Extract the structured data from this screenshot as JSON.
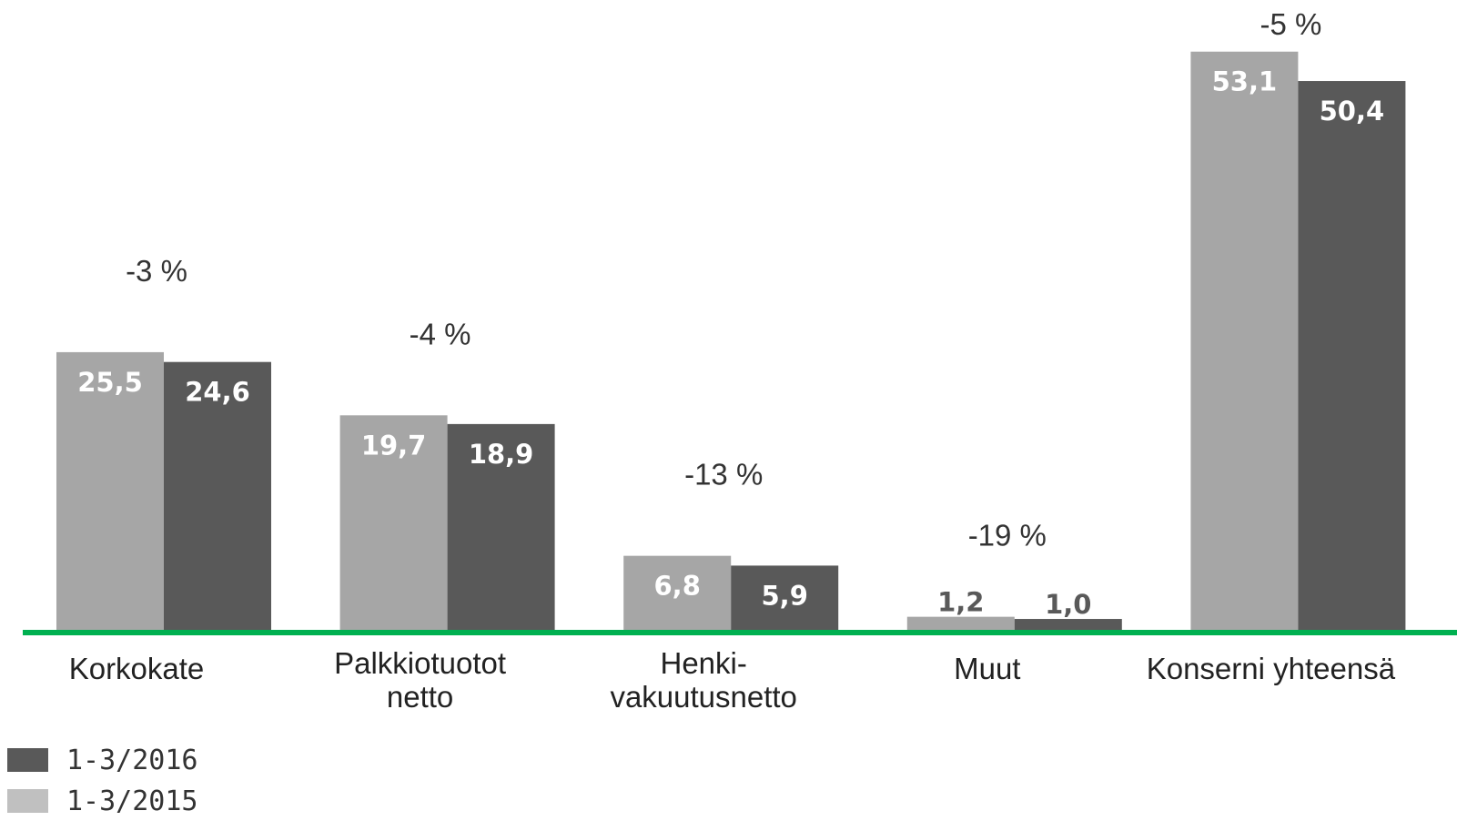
{
  "chart_data": {
    "type": "bar",
    "categories": [
      "Korkokate",
      "Palkkiotuotot\nnetto",
      "Henki-\nvakuutusnetto",
      "Muut",
      "Konserni yhteensä"
    ],
    "series": [
      {
        "name": "1-3/2015",
        "color": "#a6a6a6",
        "legend_color": "#c0c0c0",
        "values": [
          25.5,
          19.7,
          6.8,
          1.2,
          53.1
        ],
        "value_labels": [
          "25,5",
          "19,7",
          "6,8",
          "1,2",
          "53,1"
        ]
      },
      {
        "name": "1-3/2016",
        "color": "#595959",
        "legend_color": "#595959",
        "values": [
          24.6,
          18.9,
          5.9,
          1.0,
          50.4
        ],
        "value_labels": [
          "24,6",
          "18,9",
          "5,9",
          "1,0",
          "50,4"
        ]
      }
    ],
    "annotations": [
      "-3 %",
      "-4 %",
      "-13 %",
      "-19 %",
      "-5 %"
    ],
    "baseline_color": "#00b050",
    "legend_order": [
      1,
      0
    ],
    "legend": "bottom-left",
    "ylim": [
      0,
      55
    ]
  }
}
